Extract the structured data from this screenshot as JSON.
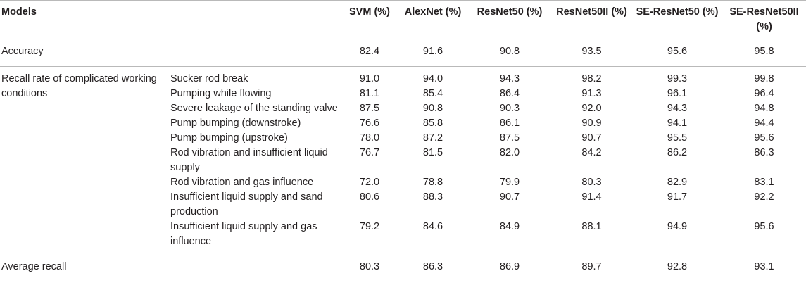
{
  "table": {
    "headers": {
      "models": "Models",
      "svm": "SVM (%)",
      "alexnet": "AlexNet (%)",
      "resnet50": "ResNet50 (%)",
      "resnet50ii": "ResNet50II (%)",
      "se_resnet50": "SE-ResNet50 (%)",
      "se_resnet50ii": "SE-ResNet50II (%)"
    },
    "accuracy": {
      "label": "Accuracy",
      "values": [
        "82.4",
        "91.6",
        "90.8",
        "93.5",
        "95.6",
        "95.8"
      ]
    },
    "recall_group_label": "Recall rate of complicated working conditions",
    "recall_rows": [
      {
        "condition": "Sucker rod break",
        "values": [
          "91.0",
          "94.0",
          "94.3",
          "98.2",
          "99.3",
          "99.8"
        ]
      },
      {
        "condition": "Pumping while flowing",
        "values": [
          "81.1",
          "85.4",
          "86.4",
          "91.3",
          "96.1",
          "96.4"
        ]
      },
      {
        "condition": "Severe leakage of the standing valve",
        "values": [
          "87.5",
          "90.8",
          "90.3",
          "92.0",
          "94.3",
          "94.8"
        ]
      },
      {
        "condition": "Pump bumping (downstroke)",
        "values": [
          "76.6",
          "85.8",
          "86.1",
          "90.9",
          "94.1",
          "94.4"
        ]
      },
      {
        "condition": "Pump bumping (upstroke)",
        "values": [
          "78.0",
          "87.2",
          "87.5",
          "90.7",
          "95.5",
          "95.6"
        ]
      },
      {
        "condition": "Rod vibration and insufficient liquid supply",
        "values": [
          "76.7",
          "81.5",
          "82.0",
          "84.2",
          "86.2",
          "86.3"
        ]
      },
      {
        "condition": "Rod vibration and gas influence",
        "values": [
          "72.0",
          "78.8",
          "79.9",
          "80.3",
          "82.9",
          "83.1"
        ]
      },
      {
        "condition": "Insufficient liquid supply and sand production",
        "values": [
          "80.6",
          "88.3",
          "90.7",
          "91.4",
          "91.7",
          "92.2"
        ]
      },
      {
        "condition": "Insufficient liquid supply and gas influence",
        "values": [
          "79.2",
          "84.6",
          "84.9",
          "88.1",
          "94.9",
          "95.6"
        ]
      }
    ],
    "average": {
      "label": "Average recall",
      "values": [
        "80.3",
        "86.3",
        "86.9",
        "89.7",
        "92.8",
        "93.1"
      ]
    }
  }
}
